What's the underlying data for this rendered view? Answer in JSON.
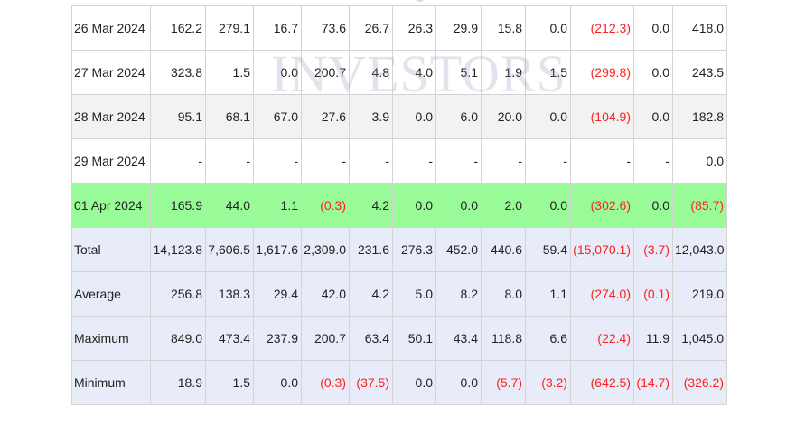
{
  "watermark": "INVESTORS",
  "colors": {
    "negative": "#ff2020",
    "highlight_row": "#98fb98",
    "stat_row": "#e8ecf8",
    "alt_row": "#f2f2f2"
  },
  "rows": [
    {
      "label": "26 Mar 2024",
      "style": "even",
      "cells": [
        "162.2",
        "279.1",
        "16.7",
        "73.6",
        "26.7",
        "26.3",
        "29.9",
        "15.8",
        "0.0",
        "(212.3)",
        "0.0",
        "418.0"
      ]
    },
    {
      "label": "27 Mar 2024",
      "style": "even",
      "cells": [
        "323.8",
        "1.5",
        "0.0",
        "200.7",
        "4.8",
        "4.0",
        "5.1",
        "1.9",
        "1.5",
        "(299.8)",
        "0.0",
        "243.5"
      ]
    },
    {
      "label": "28 Mar 2024",
      "style": "odd",
      "cells": [
        "95.1",
        "68.1",
        "67.0",
        "27.6",
        "3.9",
        "0.0",
        "6.0",
        "20.0",
        "0.0",
        "(104.9)",
        "0.0",
        "182.8"
      ]
    },
    {
      "label": "29 Mar 2024",
      "style": "even",
      "cells": [
        "-",
        "-",
        "-",
        "-",
        "-",
        "-",
        "-",
        "-",
        "-",
        "-",
        "-",
        "0.0"
      ]
    },
    {
      "label": "01 Apr 2024",
      "style": "highlight",
      "cells": [
        "165.9",
        "44.0",
        "1.1",
        "(0.3)",
        "4.2",
        "0.0",
        "0.0",
        "2.0",
        "0.0",
        "(302.6)",
        "0.0",
        "(85.7)"
      ]
    },
    {
      "label": "Total",
      "style": "stat",
      "cells": [
        "14,123.8",
        "7,606.5",
        "1,617.6",
        "2,309.0",
        "231.6",
        "276.3",
        "452.0",
        "440.6",
        "59.4",
        "(15,070.1)",
        "(3.7)",
        "12,043.0"
      ]
    },
    {
      "label": "Average",
      "style": "stat",
      "cells": [
        "256.8",
        "138.3",
        "29.4",
        "42.0",
        "4.2",
        "5.0",
        "8.2",
        "8.0",
        "1.1",
        "(274.0)",
        "(0.1)",
        "219.0"
      ]
    },
    {
      "label": "Maximum",
      "style": "stat",
      "cells": [
        "849.0",
        "473.4",
        "237.9",
        "200.7",
        "63.4",
        "50.1",
        "43.4",
        "118.8",
        "6.6",
        "(22.4)",
        "11.9",
        "1,045.0"
      ]
    },
    {
      "label": "Minimum",
      "style": "stat",
      "cells": [
        "18.9",
        "1.5",
        "0.0",
        "(0.3)",
        "(37.5)",
        "0.0",
        "0.0",
        "(5.7)",
        "(3.2)",
        "(642.5)",
        "(14.7)",
        "(326.2)"
      ]
    }
  ]
}
